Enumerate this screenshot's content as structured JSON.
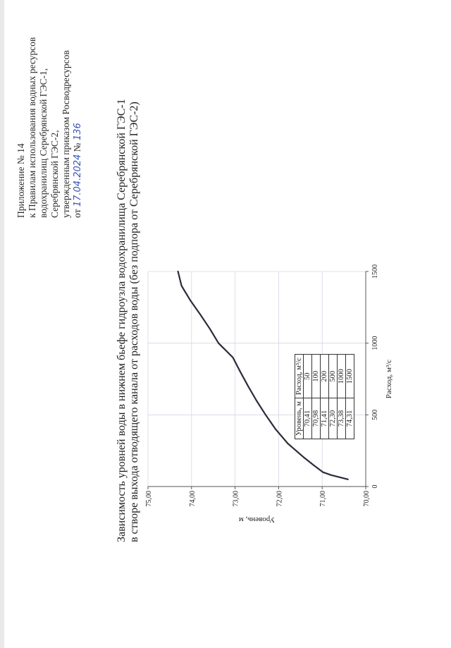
{
  "header": {
    "lines": [
      "Приложение № 14",
      "к Правилам использования водных ресурсов",
      "водохранилищ Серебрянской ГЭС-1,",
      "Серебрянской ГЭС-2,",
      "утвержденным приказом Росводресурсов"
    ],
    "order_prefix": "от",
    "order_date": "17.04.2024",
    "order_number_label": "№",
    "order_number": "136"
  },
  "title_lines": [
    "Зависимость уровней воды в нижнем бьефе гидроузла водохранилища Серебрянской ГЭС-1",
    "в створе выхода отводящего канала от расходов воды (без подпора от Серебрянской ГЭС-2)"
  ],
  "chart_data": {
    "type": "line",
    "xlabel": "Расход, м³/с",
    "ylabel": "Уровень, м",
    "xlim": [
      0,
      1500
    ],
    "ylim": [
      70.0,
      75.0
    ],
    "x_ticks": [
      "0",
      "500",
      "1000",
      "1500"
    ],
    "y_ticks": [
      "70,00",
      "71,00",
      "72,00",
      "73,00",
      "74,00",
      "75,00"
    ],
    "grid": true,
    "series": [
      {
        "x": [
          50,
          80,
          100,
          150,
          200,
          300,
          400,
          500,
          600,
          700,
          800,
          900,
          1000,
          1100,
          1200,
          1300,
          1400,
          1500
        ],
        "y": [
          70.41,
          70.8,
          70.98,
          71.2,
          71.41,
          71.79,
          72.07,
          72.3,
          72.51,
          72.7,
          72.88,
          73.05,
          73.38,
          73.58,
          73.8,
          74.03,
          74.23,
          74.31
        ]
      }
    ]
  },
  "table": {
    "headers": [
      "Уровень, м",
      "Расход, м³/с"
    ],
    "rows": [
      [
        "70,41",
        "50"
      ],
      [
        "70,98",
        "100"
      ],
      [
        "71,41",
        "200"
      ],
      [
        "72,30",
        "500"
      ],
      [
        "73,38",
        "1000"
      ],
      [
        "74,31",
        "1500"
      ]
    ]
  },
  "colors": {
    "curve": "#2b2b3a",
    "grid": "#d6d6e6",
    "axis": "#555555",
    "handwriting": "#3a52b8"
  }
}
